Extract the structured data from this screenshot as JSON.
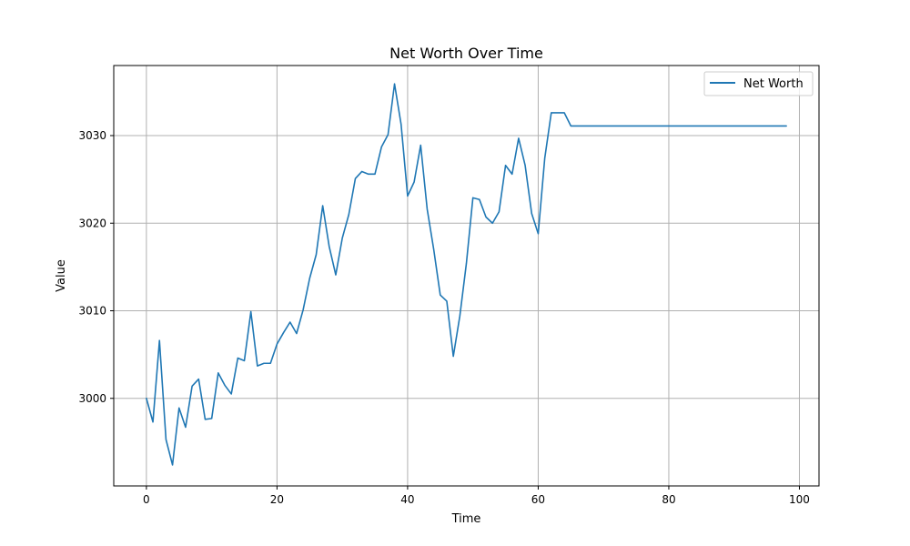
{
  "chart_data": {
    "type": "line",
    "title": "Net Worth Over Time",
    "xlabel": "Time",
    "ylabel": "Value",
    "xlim": [
      -5,
      103
    ],
    "ylim": [
      2990,
      3038
    ],
    "xticks": [
      0,
      20,
      40,
      60,
      80,
      100
    ],
    "yticks": [
      3000,
      3010,
      3020,
      3030
    ],
    "grid": true,
    "legend_position": "top-right",
    "series": [
      {
        "name": "Net Worth",
        "color": "#1f77b4",
        "x": [
          0,
          1,
          2,
          3,
          4,
          5,
          6,
          7,
          8,
          9,
          10,
          11,
          12,
          13,
          14,
          15,
          16,
          17,
          18,
          19,
          20,
          21,
          22,
          23,
          24,
          25,
          26,
          27,
          28,
          29,
          30,
          31,
          32,
          33,
          34,
          35,
          36,
          37,
          38,
          39,
          40,
          41,
          42,
          43,
          44,
          45,
          46,
          47,
          48,
          49,
          50,
          51,
          52,
          53,
          54,
          55,
          56,
          57,
          58,
          59,
          60,
          61,
          62,
          63,
          64,
          65,
          66,
          67,
          68,
          69,
          70,
          71,
          72,
          73,
          74,
          75,
          76,
          77,
          78,
          79,
          80,
          81,
          82,
          83,
          84,
          85,
          86,
          87,
          88,
          89,
          90,
          91,
          92,
          93,
          94,
          95,
          96,
          97,
          98
        ],
        "values": [
          3000.0,
          2997.3,
          3006.6,
          2995.3,
          2992.4,
          2998.9,
          2996.7,
          3001.4,
          3002.2,
          2997.6,
          2997.7,
          3002.9,
          3001.5,
          3000.5,
          3004.6,
          3004.3,
          3009.9,
          3003.7,
          3004.0,
          3004.0,
          3006.2,
          3007.5,
          3008.7,
          3007.4,
          3010.1,
          3013.7,
          3016.4,
          3022.0,
          3017.3,
          3014.1,
          3018.3,
          3021.0,
          3025.1,
          3025.9,
          3025.6,
          3025.6,
          3028.7,
          3030.1,
          3035.9,
          3031.3,
          3023.1,
          3024.7,
          3028.9,
          3021.6,
          3017.0,
          3011.8,
          3011.1,
          3004.8,
          3009.4,
          3015.4,
          3022.9,
          3022.7,
          3020.7,
          3020.0,
          3021.3,
          3026.6,
          3025.6,
          3029.7,
          3026.6,
          3021.1,
          3018.8,
          3027.4,
          3032.6,
          3032.6,
          3032.6,
          3031.1,
          3031.1,
          3031.1,
          3031.1,
          3031.1,
          3031.1,
          3031.1,
          3031.1,
          3031.1,
          3031.1,
          3031.1,
          3031.1,
          3031.1,
          3031.1,
          3031.1,
          3031.1,
          3031.1,
          3031.1,
          3031.1,
          3031.1,
          3031.1,
          3031.1,
          3031.1,
          3031.1,
          3031.1,
          3031.1,
          3031.1,
          3031.1,
          3031.1,
          3031.1,
          3031.1,
          3031.1,
          3031.1,
          3031.1
        ]
      }
    ]
  }
}
